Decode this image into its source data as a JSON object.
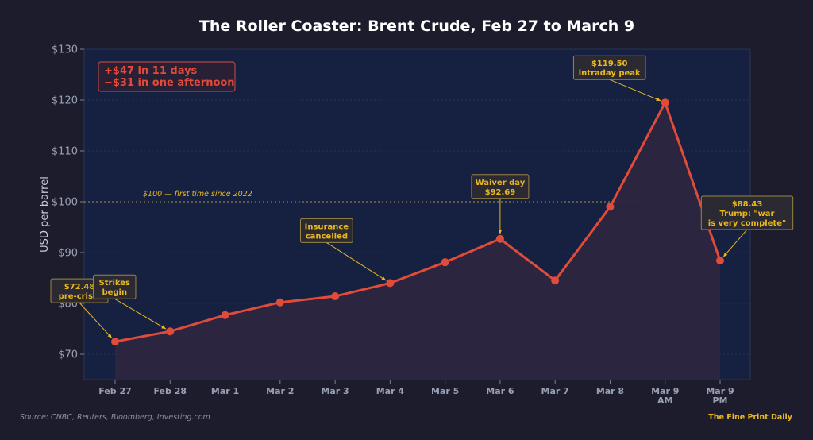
{
  "chart_data": {
    "type": "line",
    "title": "The Roller Coaster: Brent Crude, Feb 27 to March 9",
    "ylabel": "USD per barrel",
    "xlabel": "",
    "ylim": [
      65,
      130
    ],
    "yticks": [
      70,
      80,
      90,
      100,
      110,
      120,
      130
    ],
    "ytick_labels": [
      "$70",
      "$80",
      "$90",
      "$100",
      "$110",
      "$120",
      "$130"
    ],
    "categories": [
      [
        "Feb 27"
      ],
      [
        "Feb 28"
      ],
      [
        "Mar 1"
      ],
      [
        "Mar 2"
      ],
      [
        "Mar 3"
      ],
      [
        "Mar 4"
      ],
      [
        "Mar 5"
      ],
      [
        "Mar 6"
      ],
      [
        "Mar 7"
      ],
      [
        "Mar 8"
      ],
      [
        "Mar 9",
        "AM"
      ],
      [
        "Mar 9",
        "PM"
      ]
    ],
    "series": [
      {
        "values": [
          72.48,
          74.5,
          77.7,
          80.2,
          81.4,
          84.0,
          88.1,
          92.69,
          84.5,
          99.0,
          119.5,
          88.43
        ]
      }
    ],
    "reference_line": {
      "value": 100,
      "label": "$100 — first time since 2022"
    },
    "summary_box": [
      "+$47 in 11 days",
      "−$31 in one afternoon"
    ],
    "annotations": [
      {
        "index": 0,
        "lines": [
          "$72.48",
          "pre-crisis"
        ]
      },
      {
        "index": 1,
        "lines": [
          "Strikes",
          "begin"
        ]
      },
      {
        "index": 5,
        "lines": [
          "Insurance",
          "cancelled"
        ]
      },
      {
        "index": 7,
        "lines": [
          "Waiver day",
          "$92.69"
        ]
      },
      {
        "index": 10,
        "lines": [
          "$119.50",
          "intraday peak"
        ]
      },
      {
        "index": 11,
        "lines": [
          "$88.43",
          "Trump: \"war",
          "is very complete\""
        ]
      }
    ],
    "grid": true,
    "colors": {
      "line": "#e04b3a",
      "fill": "#2d2640",
      "plot_bg": "#162040",
      "page_bg": "#1c1c2c",
      "annotation": "#e8b820",
      "summary": "#e04b3a"
    }
  },
  "footer": {
    "source": "Source: CNBC, Reuters, Bloomberg, Investing.com",
    "brand": "The Fine Print Daily"
  }
}
